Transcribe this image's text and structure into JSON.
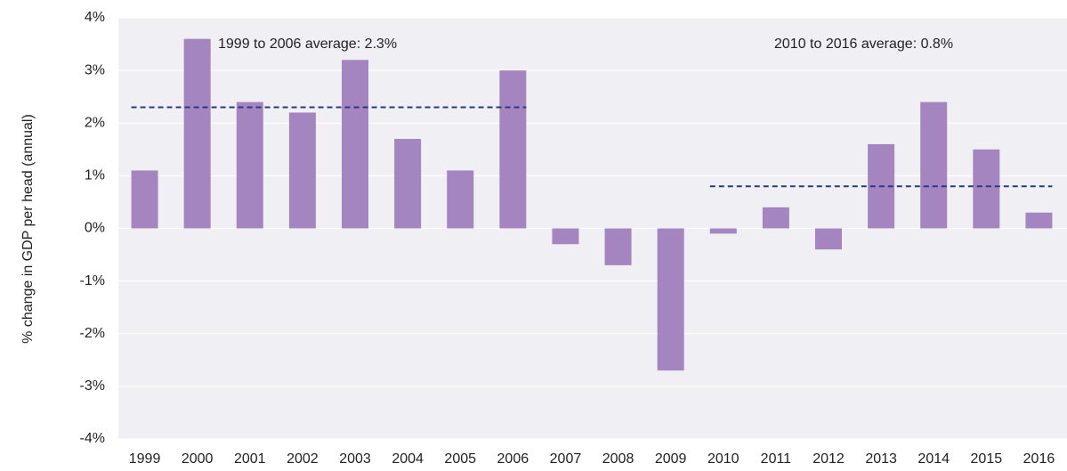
{
  "chart_data": {
    "type": "bar",
    "y_label": "% change in GDP per head (annual)",
    "categories": [
      "1999",
      "2000",
      "2001",
      "2002",
      "2003",
      "2004",
      "2005",
      "2006",
      "2007",
      "2008",
      "2009",
      "2010",
      "2011",
      "2012",
      "2013",
      "2014",
      "2015",
      "2016"
    ],
    "values": [
      1.1,
      3.6,
      2.4,
      2.2,
      3.2,
      1.7,
      1.1,
      3.0,
      -0.3,
      -0.7,
      -2.7,
      -0.1,
      0.4,
      -0.4,
      1.6,
      2.4,
      1.5,
      0.3
    ],
    "color": "#a585bf",
    "ylim": [
      -4,
      4
    ],
    "yticks": [
      {
        "value": -4,
        "label": "-4%"
      },
      {
        "value": -3,
        "label": "-3%"
      },
      {
        "value": -2,
        "label": "-2%"
      },
      {
        "value": -1,
        "label": "-1%"
      },
      {
        "value": 0,
        "label": "0%"
      },
      {
        "value": 1,
        "label": "1%"
      },
      {
        "value": 2,
        "label": "2%"
      },
      {
        "value": 3,
        "label": "3%"
      },
      {
        "value": 4,
        "label": "4%"
      }
    ],
    "grid": true,
    "averages": [
      {
        "label": "1999 to 2006 average: 2.3%",
        "value": 2.3,
        "from": "1999",
        "to": "2006",
        "color": "#2b3a80"
      },
      {
        "label": "2010 to 2016 average: 0.8%",
        "value": 0.8,
        "from": "2010",
        "to": "2016",
        "color": "#2b3a80"
      }
    ]
  }
}
